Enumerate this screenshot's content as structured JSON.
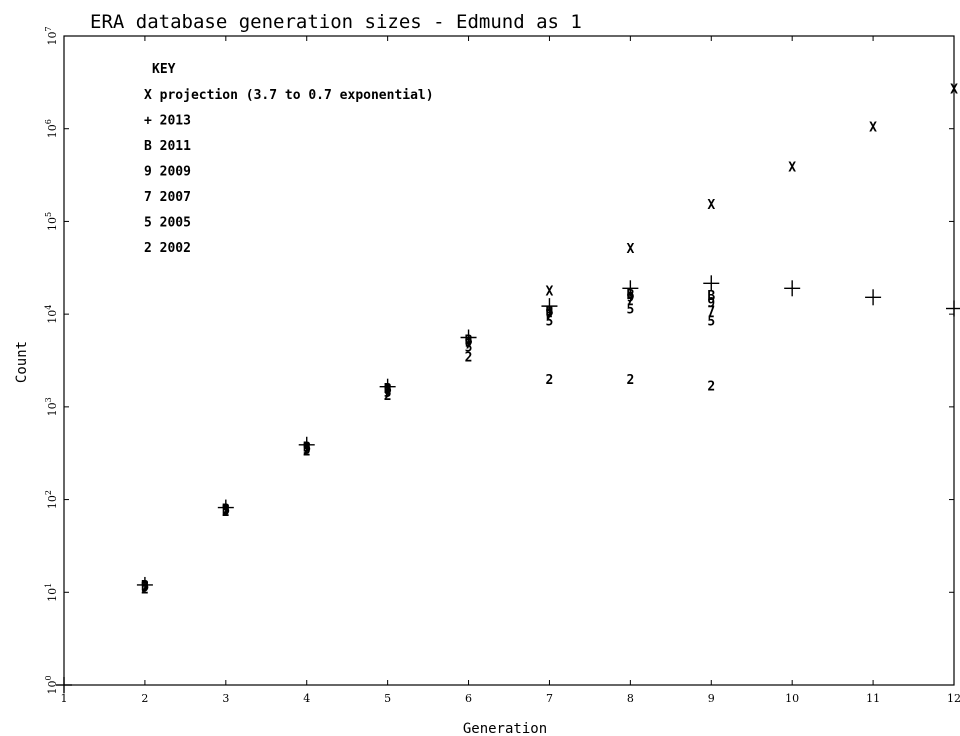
{
  "chart_data": {
    "type": "scatter",
    "title": "ERA database generation sizes - Edmund as 1",
    "xlabel": "Generation",
    "ylabel": "Count",
    "xlim": [
      1,
      12
    ],
    "ylim_log10": [
      0,
      7
    ],
    "y_scale": "log",
    "x_ticks": [
      "1",
      "2",
      "3",
      "4",
      "5",
      "6",
      "7",
      "8",
      "9",
      "10",
      "11",
      "12"
    ],
    "y_ticks": [
      {
        "base": "10",
        "exp": "0"
      },
      {
        "base": "10",
        "exp": "1"
      },
      {
        "base": "10",
        "exp": "2"
      },
      {
        "base": "10",
        "exp": "3"
      },
      {
        "base": "10",
        "exp": "4"
      },
      {
        "base": "10",
        "exp": "5"
      },
      {
        "base": "10",
        "exp": "6"
      },
      {
        "base": "10",
        "exp": "7"
      }
    ],
    "key_title": "KEY",
    "series": [
      {
        "name": "projection (3.7 to 0.7 exponential)",
        "symbol": "X",
        "x": [
          7,
          8,
          9,
          10,
          11,
          12
        ],
        "y": [
          18000,
          52000,
          155000,
          390000,
          1050000,
          2700000
        ]
      },
      {
        "name": "2013",
        "symbol": "+",
        "x": [
          1,
          2,
          3,
          4,
          5,
          6,
          7,
          8,
          9,
          10,
          11,
          12
        ],
        "y": [
          1,
          12,
          82,
          390,
          1650,
          5600,
          12200,
          19000,
          21500,
          19000,
          15200,
          11500
        ]
      },
      {
        "name": "2011",
        "symbol": "B",
        "x": [
          2,
          3,
          4,
          5,
          6,
          7,
          8,
          9
        ],
        "y": [
          12,
          80,
          375,
          1600,
          5300,
          11000,
          16500,
          16000
        ]
      },
      {
        "name": "2009",
        "symbol": "9",
        "x": [
          2,
          3,
          4,
          5,
          6,
          7,
          8,
          9
        ],
        "y": [
          12,
          80,
          370,
          1550,
          5100,
          10500,
          15500,
          13500
        ]
      },
      {
        "name": "2007",
        "symbol": "7",
        "x": [
          2,
          3,
          4,
          5,
          6,
          7,
          8,
          9
        ],
        "y": [
          11.5,
          78,
          360,
          1500,
          4800,
          10000,
          14500,
          11000
        ]
      },
      {
        "name": "2005",
        "symbol": "5",
        "x": [
          2,
          3,
          4,
          5,
          6,
          7,
          8,
          9
        ],
        "y": [
          11.5,
          77,
          350,
          1450,
          4500,
          8500,
          11500,
          8500
        ]
      },
      {
        "name": "2002",
        "symbol": "2",
        "x": [
          2,
          3,
          4,
          5,
          6,
          7,
          8,
          9
        ],
        "y": [
          11,
          75,
          340,
          1350,
          3500,
          2000,
          2000,
          1700
        ]
      }
    ],
    "grid": false,
    "legend_position": "top-left"
  }
}
